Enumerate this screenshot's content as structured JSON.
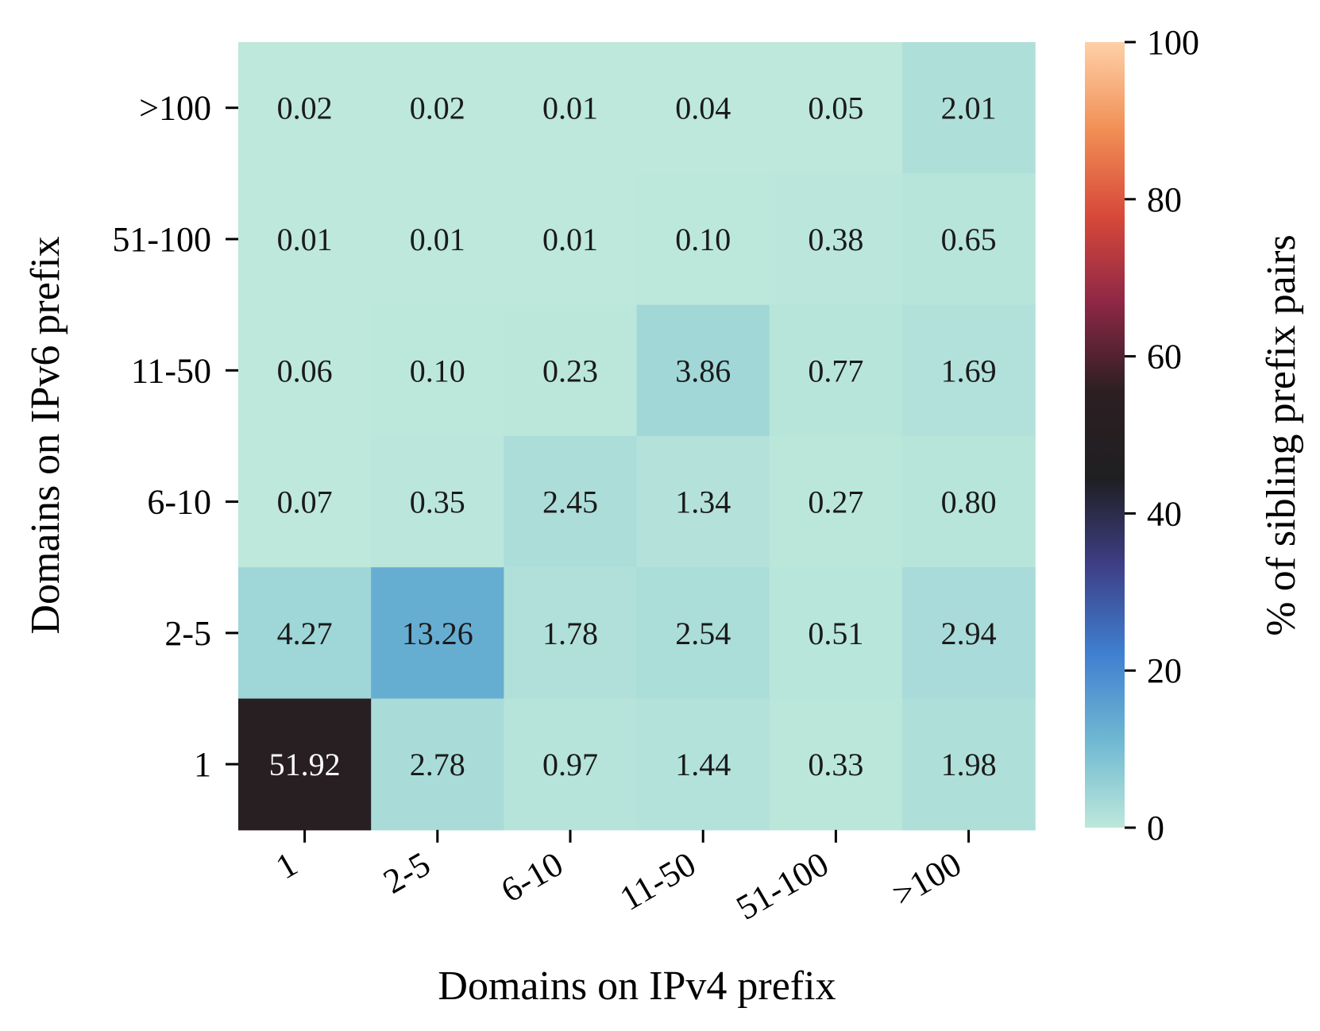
{
  "chart_data": {
    "type": "heatmap",
    "x_categories": [
      "1",
      "2-5",
      "6-10",
      "11-50",
      "51-100",
      ">100"
    ],
    "y_categories": [
      ">100",
      "51-100",
      "11-50",
      "6-10",
      "2-5",
      "1"
    ],
    "values": [
      [
        0.02,
        0.02,
        0.01,
        0.04,
        0.05,
        2.01
      ],
      [
        0.01,
        0.01,
        0.01,
        0.1,
        0.38,
        0.65
      ],
      [
        0.06,
        0.1,
        0.23,
        3.86,
        0.77,
        1.69
      ],
      [
        0.07,
        0.35,
        2.45,
        1.34,
        0.27,
        0.8
      ],
      [
        4.27,
        13.26,
        1.78,
        2.54,
        0.51,
        2.94
      ],
      [
        51.92,
        2.78,
        0.97,
        1.44,
        0.33,
        1.98
      ]
    ],
    "xlabel": "Domains on IPv4 prefix",
    "ylabel": "Domains on IPv6 prefix",
    "colorbar": {
      "label": "% of sibling prefix pairs",
      "range": [
        0,
        100
      ],
      "ticks": [
        "0",
        "20",
        "40",
        "60",
        "80",
        "100"
      ],
      "colors": [
        "#bde8db",
        "#6fb8d2",
        "#3f7fd0",
        "#3e3f87",
        "#1f1f22",
        "#2c1f22",
        "#8c2746",
        "#d8483a",
        "#f18f55",
        "#fed0a8"
      ]
    }
  }
}
